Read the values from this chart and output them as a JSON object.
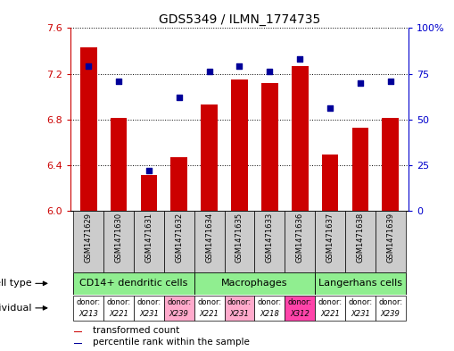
{
  "title": "GDS5349 / ILMN_1774735",
  "samples": [
    "GSM1471629",
    "GSM1471630",
    "GSM1471631",
    "GSM1471632",
    "GSM1471634",
    "GSM1471635",
    "GSM1471633",
    "GSM1471636",
    "GSM1471637",
    "GSM1471638",
    "GSM1471639"
  ],
  "transformed_count": [
    7.43,
    6.81,
    6.31,
    6.47,
    6.93,
    7.15,
    7.12,
    7.27,
    6.49,
    6.73,
    6.81
  ],
  "percentile_rank": [
    79,
    71,
    22,
    62,
    76,
    79,
    76,
    83,
    56,
    70,
    71
  ],
  "ylim_left": [
    6.0,
    7.6
  ],
  "ylim_right": [
    0,
    100
  ],
  "yticks_left": [
    6.0,
    6.4,
    6.8,
    7.2,
    7.6
  ],
  "yticks_right": [
    0,
    25,
    50,
    75,
    100
  ],
  "ytick_labels_right": [
    "0",
    "25",
    "50",
    "75",
    "100%"
  ],
  "cell_type_groups": [
    {
      "label": "CD14+ dendritic cells",
      "start": 0,
      "end": 3,
      "color": "#90ee90"
    },
    {
      "label": "Macrophages",
      "start": 4,
      "end": 7,
      "color": "#90ee90"
    },
    {
      "label": "Langerhans cells",
      "start": 8,
      "end": 10,
      "color": "#90ee90"
    }
  ],
  "donors": [
    "X213",
    "X221",
    "X231",
    "X239",
    "X221",
    "X231",
    "X218",
    "X312",
    "X221",
    "X231",
    "X239"
  ],
  "donor_colors": [
    "#ffffff",
    "#ffffff",
    "#ffffff",
    "#ffaacc",
    "#ffffff",
    "#ffaacc",
    "#ffffff",
    "#ff44aa",
    "#ffffff",
    "#ffffff",
    "#ffffff"
  ],
  "bar_color": "#cc0000",
  "dot_color": "#000099",
  "label_color_left": "#cc0000",
  "label_color_right": "#0000cc",
  "gsm_bg_color": "#cccccc",
  "gsm_font_size": 6.0,
  "cell_type_font_size": 8.0,
  "donor_font_size": 6.0,
  "legend_font_size": 7.5
}
